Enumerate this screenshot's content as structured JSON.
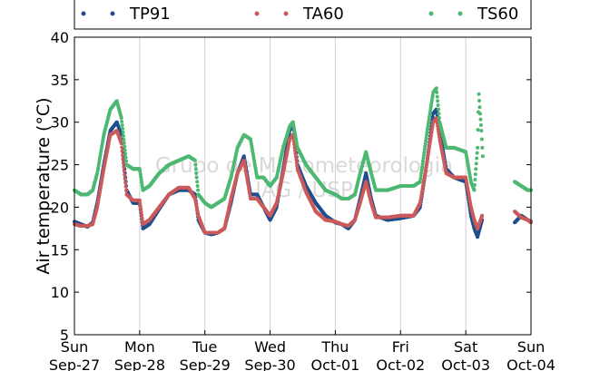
{
  "chart_data": {
    "type": "scatter",
    "ylabel": "Air temperature (°C)",
    "ylim": [
      5,
      40
    ],
    "yticks": [
      5,
      10,
      15,
      20,
      25,
      30,
      35,
      40
    ],
    "xlim": [
      0,
      7
    ],
    "x_ticks": [
      {
        "day": "Sun",
        "date": "Sep-27",
        "x": 0
      },
      {
        "day": "Mon",
        "date": "Sep-28",
        "x": 1
      },
      {
        "day": "Tue",
        "date": "Sep-29",
        "x": 2
      },
      {
        "day": "Wed",
        "date": "Sep-30",
        "x": 3
      },
      {
        "day": "Thu",
        "date": "Oct-01",
        "x": 4
      },
      {
        "day": "Fri",
        "date": "Oct-02",
        "x": 5
      },
      {
        "day": "Sat",
        "date": "Oct-03",
        "x": 6
      },
      {
        "day": "Sun",
        "date": "Oct-04",
        "x": 7
      }
    ],
    "x_grid": true,
    "legend_position": "top",
    "watermark": [
      "Grupo de Micrometeorologia",
      "IAG / USP"
    ],
    "series": [
      {
        "name": "TP91",
        "color": "#1f4e8c",
        "points": [
          [
            0.0,
            18.3
          ],
          [
            0.1,
            18.0
          ],
          [
            0.2,
            17.7
          ],
          [
            0.28,
            18.2
          ],
          [
            0.35,
            20.5
          ],
          [
            0.45,
            25.0
          ],
          [
            0.55,
            29.0
          ],
          [
            0.65,
            30.0
          ],
          [
            0.72,
            28.5
          ],
          [
            0.8,
            22.0
          ],
          [
            0.9,
            20.5
          ],
          [
            1.0,
            20.5
          ],
          [
            1.05,
            17.5
          ],
          [
            1.15,
            18.0
          ],
          [
            1.3,
            19.8
          ],
          [
            1.45,
            21.5
          ],
          [
            1.6,
            22.0
          ],
          [
            1.75,
            22.0
          ],
          [
            1.85,
            21.5
          ],
          [
            1.9,
            18.5
          ],
          [
            2.0,
            17.0
          ],
          [
            2.1,
            16.8
          ],
          [
            2.2,
            17.0
          ],
          [
            2.3,
            17.5
          ],
          [
            2.4,
            20.5
          ],
          [
            2.5,
            24.0
          ],
          [
            2.6,
            26.0
          ],
          [
            2.7,
            21.5
          ],
          [
            2.8,
            21.5
          ],
          [
            2.9,
            20.0
          ],
          [
            3.0,
            18.5
          ],
          [
            3.1,
            20.0
          ],
          [
            3.2,
            24.5
          ],
          [
            3.3,
            29.0
          ],
          [
            3.35,
            30.0
          ],
          [
            3.42,
            25.0
          ],
          [
            3.55,
            22.5
          ],
          [
            3.7,
            20.5
          ],
          [
            3.85,
            19.0
          ],
          [
            4.0,
            18.2
          ],
          [
            4.1,
            18.0
          ],
          [
            4.2,
            17.5
          ],
          [
            4.3,
            18.5
          ],
          [
            4.38,
            21.0
          ],
          [
            4.47,
            24.0
          ],
          [
            4.55,
            21.0
          ],
          [
            4.62,
            19.0
          ],
          [
            4.8,
            18.5
          ],
          [
            5.0,
            18.7
          ],
          [
            5.2,
            19.0
          ],
          [
            5.3,
            20.0
          ],
          [
            5.4,
            25.0
          ],
          [
            5.5,
            31.0
          ],
          [
            5.55,
            31.5
          ],
          [
            5.6,
            29.0
          ],
          [
            5.7,
            24.5
          ],
          [
            5.82,
            23.5
          ],
          [
            6.0,
            23.0
          ],
          [
            6.08,
            19.0
          ],
          [
            6.13,
            17.5
          ],
          [
            6.18,
            16.5
          ],
          [
            6.25,
            18.5
          ],
          [
            6.75,
            18.2
          ],
          [
            6.85,
            19.0
          ],
          [
            6.95,
            18.5
          ],
          [
            7.0,
            18.3
          ]
        ]
      },
      {
        "name": "TA60",
        "color": "#cc5a5a",
        "points": [
          [
            0.0,
            18.0
          ],
          [
            0.1,
            17.8
          ],
          [
            0.2,
            17.8
          ],
          [
            0.28,
            18.0
          ],
          [
            0.35,
            20.0
          ],
          [
            0.45,
            24.5
          ],
          [
            0.55,
            28.5
          ],
          [
            0.65,
            29.0
          ],
          [
            0.72,
            27.5
          ],
          [
            0.8,
            21.5
          ],
          [
            0.9,
            20.8
          ],
          [
            1.0,
            20.8
          ],
          [
            1.05,
            18.0
          ],
          [
            1.15,
            18.5
          ],
          [
            1.3,
            20.0
          ],
          [
            1.45,
            21.5
          ],
          [
            1.6,
            22.3
          ],
          [
            1.75,
            22.3
          ],
          [
            1.85,
            21.0
          ],
          [
            1.9,
            19.0
          ],
          [
            2.0,
            17.0
          ],
          [
            2.1,
            17.0
          ],
          [
            2.2,
            17.0
          ],
          [
            2.3,
            17.5
          ],
          [
            2.4,
            21.0
          ],
          [
            2.5,
            24.0
          ],
          [
            2.6,
            25.5
          ],
          [
            2.7,
            21.0
          ],
          [
            2.8,
            21.0
          ],
          [
            2.9,
            20.0
          ],
          [
            3.0,
            19.0
          ],
          [
            3.1,
            20.5
          ],
          [
            3.2,
            24.0
          ],
          [
            3.3,
            28.0
          ],
          [
            3.35,
            28.5
          ],
          [
            3.42,
            24.5
          ],
          [
            3.55,
            21.8
          ],
          [
            3.7,
            19.5
          ],
          [
            3.85,
            18.5
          ],
          [
            4.0,
            18.3
          ],
          [
            4.1,
            18.0
          ],
          [
            4.2,
            17.8
          ],
          [
            4.3,
            18.5
          ],
          [
            4.38,
            20.5
          ],
          [
            4.47,
            23.0
          ],
          [
            4.55,
            20.5
          ],
          [
            4.62,
            18.8
          ],
          [
            4.8,
            18.8
          ],
          [
            5.0,
            19.0
          ],
          [
            5.2,
            19.0
          ],
          [
            5.3,
            20.5
          ],
          [
            5.4,
            25.0
          ],
          [
            5.5,
            30.0
          ],
          [
            5.55,
            30.5
          ],
          [
            5.6,
            28.0
          ],
          [
            5.7,
            24.0
          ],
          [
            5.82,
            23.5
          ],
          [
            6.0,
            23.5
          ],
          [
            6.08,
            20.0
          ],
          [
            6.13,
            18.5
          ],
          [
            6.18,
            17.5
          ],
          [
            6.25,
            19.0
          ],
          [
            6.75,
            19.5
          ],
          [
            6.85,
            18.8
          ],
          [
            6.95,
            18.5
          ],
          [
            7.0,
            18.2
          ]
        ]
      },
      {
        "name": "TS60",
        "color": "#4db872",
        "points": [
          [
            0.0,
            22.0
          ],
          [
            0.1,
            21.5
          ],
          [
            0.2,
            21.5
          ],
          [
            0.28,
            22.0
          ],
          [
            0.35,
            24.0
          ],
          [
            0.45,
            28.5
          ],
          [
            0.55,
            31.5
          ],
          [
            0.65,
            32.5
          ],
          [
            0.72,
            30.5
          ],
          [
            0.8,
            25.0
          ],
          [
            0.9,
            24.5
          ],
          [
            1.0,
            24.5
          ],
          [
            1.05,
            22.0
          ],
          [
            1.15,
            22.5
          ],
          [
            1.3,
            24.0
          ],
          [
            1.45,
            25.0
          ],
          [
            1.6,
            25.5
          ],
          [
            1.75,
            26.0
          ],
          [
            1.85,
            25.5
          ],
          [
            1.9,
            21.5
          ],
          [
            2.0,
            20.5
          ],
          [
            2.1,
            20.0
          ],
          [
            2.2,
            20.5
          ],
          [
            2.3,
            21.0
          ],
          [
            2.4,
            23.5
          ],
          [
            2.5,
            27.0
          ],
          [
            2.6,
            28.5
          ],
          [
            2.7,
            28.0
          ],
          [
            2.8,
            23.5
          ],
          [
            2.9,
            23.5
          ],
          [
            3.0,
            22.5
          ],
          [
            3.1,
            23.5
          ],
          [
            3.2,
            27.0
          ],
          [
            3.3,
            29.5
          ],
          [
            3.35,
            30.0
          ],
          [
            3.42,
            27.0
          ],
          [
            3.55,
            25.0
          ],
          [
            3.7,
            23.5
          ],
          [
            3.85,
            22.0
          ],
          [
            4.0,
            21.5
          ],
          [
            4.1,
            21.0
          ],
          [
            4.2,
            21.0
          ],
          [
            4.3,
            21.5
          ],
          [
            4.38,
            24.0
          ],
          [
            4.47,
            26.5
          ],
          [
            4.55,
            24.0
          ],
          [
            4.62,
            22.0
          ],
          [
            4.8,
            22.0
          ],
          [
            5.0,
            22.5
          ],
          [
            5.2,
            22.5
          ],
          [
            5.3,
            23.0
          ],
          [
            5.4,
            28.5
          ],
          [
            5.5,
            33.5
          ],
          [
            5.55,
            34.0
          ],
          [
            5.6,
            30.0
          ],
          [
            5.7,
            27.0
          ],
          [
            5.82,
            27.0
          ],
          [
            6.0,
            26.5
          ],
          [
            6.08,
            23.0
          ],
          [
            6.13,
            22.0
          ],
          [
            6.18,
            27.0
          ],
          [
            6.2,
            33.3
          ],
          [
            6.22,
            31.0
          ],
          [
            6.24,
            29.0
          ],
          [
            6.26,
            26.0
          ],
          [
            6.75,
            23.0
          ],
          [
            6.85,
            22.5
          ],
          [
            6.95,
            22.0
          ],
          [
            7.0,
            22.0
          ]
        ]
      }
    ]
  }
}
